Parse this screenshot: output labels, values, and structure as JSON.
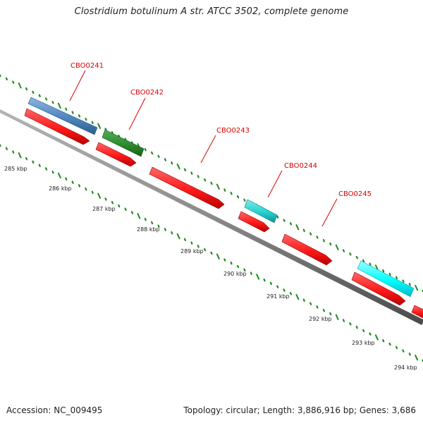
{
  "title": "Clostridium botulinum A str. ATCC 3502, complete genome",
  "footer": {
    "accession": "Accession: NC_009495",
    "summary": "Topology: circular; Length: 3,886,916 bp; Genes: 3,686"
  },
  "colors": {
    "backbone": "#8a8a8a",
    "tick": "#1f8a1f",
    "scale_label": "#222222",
    "gene_label": "#dd0000",
    "red_gene": "#ff1a1a",
    "blue_gene": "#4f86bd",
    "green_gene": "#2e8b2e",
    "cyan_gene": "#22d3d3",
    "cyan_gene_b": "#00ffff"
  },
  "scale": {
    "labels": [
      {
        "text": "285 kbp"
      },
      {
        "text": "286 kbp"
      },
      {
        "text": "287 kbp"
      },
      {
        "text": "288 kbp"
      },
      {
        "text": "289 kbp"
      },
      {
        "text": "290 kbp"
      },
      {
        "text": "291 kbp"
      },
      {
        "text": "292 kbp"
      },
      {
        "text": "293 kbp"
      },
      {
        "text": "294 kbp"
      }
    ]
  },
  "genes": [
    {
      "label": "CBO0241",
      "color_key": "blue_gene"
    },
    {
      "label": "CBO0242",
      "color_key": "green_gene"
    },
    {
      "label": "CBO0243",
      "color_key": ""
    },
    {
      "label": "CBO0244",
      "color_key": "cyan_gene"
    },
    {
      "label": "CBO0245",
      "color_key": "cyan_gene_b"
    }
  ]
}
